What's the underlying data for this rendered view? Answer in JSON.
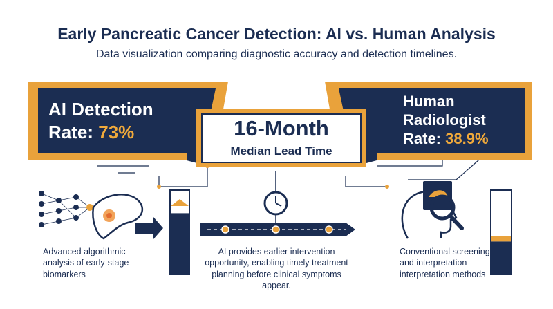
{
  "header": {
    "title": "Early Pancreatic Cancer Detection: AI vs. Human Analysis",
    "subtitle": "Data visualization comparing diagnostic accuracy and detection timelines."
  },
  "ai_panel": {
    "line1": "AI Detection",
    "rate_label": "Rate:",
    "rate_value": "73%",
    "caption": [
      "Advanced algorithmic",
      "analysis of early-stage",
      "biomarkers"
    ],
    "bar_fill_fraction": 0.73
  },
  "center_panel": {
    "headline": "16-Month",
    "subline": "Median Lead Time",
    "caption": [
      "AI provides earlier intervention",
      "opportunity, enabling timely treatment",
      "planning before clinical symptoms appear."
    ]
  },
  "human_panel": {
    "line1": "Human",
    "line2": "Radiologist",
    "rate_label": "Rate:",
    "rate_value": "38.9%",
    "caption": [
      "Conventional screening",
      "and interpretation",
      "interpretation methods"
    ],
    "bar_fill_fraction": 0.389
  },
  "colors": {
    "navy": "#1b2d52",
    "gold": "#e9a23b",
    "white": "#ffffff"
  },
  "icons": [
    "neural-network-icon",
    "pancreas-icon",
    "arrow-right-icon",
    "clock-icon",
    "timeline-icon",
    "head-scan-icon",
    "magnifier-icon"
  ]
}
